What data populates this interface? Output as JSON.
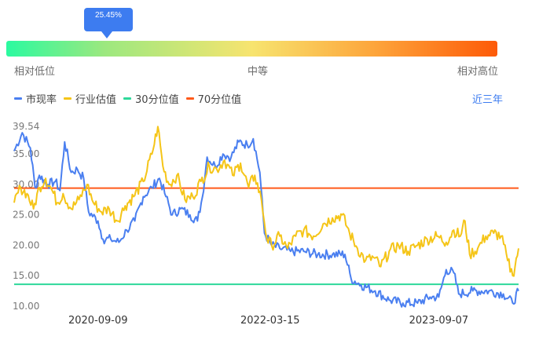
{
  "gauge": {
    "percentile_label": "25.45%",
    "percentile_value": 25.45,
    "low_label": "相对低位",
    "mid_label": "中等",
    "high_label": "相对高位",
    "gradient_colors": [
      "#2bfaa0",
      "#9ce87f",
      "#f7e46f",
      "#fda53b",
      "#fd5a08"
    ]
  },
  "legend": {
    "items": [
      {
        "label": "市现率",
        "color": "#4a7ff0"
      },
      {
        "label": "行业估值",
        "color": "#f5c518"
      },
      {
        "label": "30分位值",
        "color": "#2ed89a"
      },
      {
        "label": "70分位值",
        "color": "#ff5a1a"
      }
    ],
    "period_label": "近三年"
  },
  "chart_data": {
    "type": "line",
    "x_range": [
      "2019-12-15",
      "2024-05-20"
    ],
    "x_ticks": [
      "2020-09-09",
      "2022-03-15",
      "2023-09-07"
    ],
    "y_ticks": [
      "10.00",
      "15.00",
      "20.00",
      "25.00",
      "30.00",
      "35.00",
      "39.54"
    ],
    "ylim": [
      10.0,
      39.54
    ],
    "reference_lines": [
      {
        "name": "30分位值",
        "value": 13.6,
        "color": "#2ed89a"
      },
      {
        "name": "70分位值",
        "value": 29.4,
        "color": "#ff5a1a"
      }
    ],
    "series": [
      {
        "name": "市现率",
        "color": "#4a7ff0",
        "points": [
          [
            "2019-12-15",
            35.5
          ],
          [
            "2020-01-10",
            38.5
          ],
          [
            "2020-02-05",
            36.0
          ],
          [
            "2020-02-20",
            29.5
          ],
          [
            "2020-03-05",
            31.5
          ],
          [
            "2020-04-01",
            30.0
          ],
          [
            "2020-04-25",
            30.5
          ],
          [
            "2020-05-10",
            29.0
          ],
          [
            "2020-05-25",
            37.0
          ],
          [
            "2020-06-15",
            32.0
          ],
          [
            "2020-07-05",
            32.5
          ],
          [
            "2020-07-25",
            31.0
          ],
          [
            "2020-08-10",
            25.5
          ],
          [
            "2020-09-09",
            24.0
          ],
          [
            "2020-09-25",
            21.0
          ],
          [
            "2020-10-20",
            21.0
          ],
          [
            "2020-11-15",
            20.5
          ],
          [
            "2020-12-10",
            22.5
          ],
          [
            "2021-01-05",
            24.0
          ],
          [
            "2021-02-01",
            28.0
          ],
          [
            "2021-03-01",
            29.5
          ],
          [
            "2021-03-25",
            31.0
          ],
          [
            "2021-04-15",
            28.0
          ],
          [
            "2021-05-05",
            25.0
          ],
          [
            "2021-06-01",
            26.0
          ],
          [
            "2021-07-01",
            25.0
          ],
          [
            "2021-07-25",
            24.0
          ],
          [
            "2021-08-10",
            28.0
          ],
          [
            "2021-08-25",
            34.5
          ],
          [
            "2021-09-20",
            33.0
          ],
          [
            "2021-10-15",
            35.0
          ],
          [
            "2021-11-10",
            34.5
          ],
          [
            "2021-12-05",
            37.0
          ],
          [
            "2022-01-01",
            36.5
          ],
          [
            "2022-01-20",
            37.5
          ],
          [
            "2022-02-10",
            32.0
          ],
          [
            "2022-02-25",
            22.0
          ],
          [
            "2022-03-20",
            20.0
          ],
          [
            "2022-04-15",
            19.5
          ],
          [
            "2022-05-20",
            19.0
          ],
          [
            "2022-07-01",
            19.0
          ],
          [
            "2022-08-15",
            18.5
          ],
          [
            "2022-10-01",
            18.5
          ],
          [
            "2022-11-10",
            18.5
          ],
          [
            "2022-11-30",
            14.5
          ],
          [
            "2023-01-01",
            13.5
          ],
          [
            "2023-02-15",
            12.5
          ],
          [
            "2023-04-01",
            11.0
          ],
          [
            "2023-05-15",
            10.5
          ],
          [
            "2023-07-01",
            10.5
          ],
          [
            "2023-08-10",
            11.5
          ],
          [
            "2023-09-07",
            11.5
          ],
          [
            "2023-10-01",
            16.0
          ],
          [
            "2023-10-25",
            15.5
          ],
          [
            "2023-11-10",
            12.0
          ],
          [
            "2023-12-25",
            12.5
          ],
          [
            "2024-02-15",
            12.5
          ],
          [
            "2024-04-01",
            12.0
          ],
          [
            "2024-05-01",
            10.5
          ],
          [
            "2024-05-20",
            12.5
          ]
        ]
      },
      {
        "name": "行业估值",
        "color": "#f5c518",
        "points": [
          [
            "2019-12-15",
            27.0
          ],
          [
            "2020-01-05",
            29.5
          ],
          [
            "2020-01-25",
            28.5
          ],
          [
            "2020-02-15",
            26.0
          ],
          [
            "2020-03-05",
            29.5
          ],
          [
            "2020-03-25",
            31.0
          ],
          [
            "2020-04-15",
            29.0
          ],
          [
            "2020-05-01",
            27.0
          ],
          [
            "2020-05-20",
            28.5
          ],
          [
            "2020-06-15",
            26.0
          ],
          [
            "2020-07-10",
            27.5
          ],
          [
            "2020-08-05",
            30.0
          ],
          [
            "2020-08-25",
            27.0
          ],
          [
            "2020-09-20",
            25.5
          ],
          [
            "2020-10-15",
            26.0
          ],
          [
            "2020-11-10",
            24.0
          ],
          [
            "2020-12-05",
            26.5
          ],
          [
            "2021-01-01",
            28.0
          ],
          [
            "2021-02-01",
            30.5
          ],
          [
            "2021-03-01",
            35.0
          ],
          [
            "2021-03-20",
            39.5
          ],
          [
            "2021-04-05",
            33.0
          ],
          [
            "2021-04-25",
            30.0
          ],
          [
            "2021-05-20",
            31.5
          ],
          [
            "2021-06-15",
            27.5
          ],
          [
            "2021-07-10",
            28.0
          ],
          [
            "2021-08-05",
            30.5
          ],
          [
            "2021-09-01",
            33.0
          ],
          [
            "2021-09-25",
            32.5
          ],
          [
            "2021-10-20",
            34.0
          ],
          [
            "2021-11-15",
            31.5
          ],
          [
            "2021-12-10",
            33.5
          ],
          [
            "2022-01-05",
            29.5
          ],
          [
            "2022-01-25",
            31.5
          ],
          [
            "2022-02-15",
            27.5
          ],
          [
            "2022-03-05",
            21.0
          ],
          [
            "2022-03-20",
            20.0
          ],
          [
            "2022-04-15",
            21.5
          ],
          [
            "2022-05-10",
            19.5
          ],
          [
            "2022-06-05",
            21.5
          ],
          [
            "2022-07-01",
            22.5
          ],
          [
            "2022-08-01",
            21.5
          ],
          [
            "2022-09-01",
            23.5
          ],
          [
            "2022-10-01",
            24.5
          ],
          [
            "2022-11-01",
            25.0
          ],
          [
            "2022-11-25",
            22.0
          ],
          [
            "2022-12-20",
            19.5
          ],
          [
            "2023-01-15",
            17.5
          ],
          [
            "2023-02-10",
            18.0
          ],
          [
            "2023-03-05",
            16.5
          ],
          [
            "2023-04-01",
            19.0
          ],
          [
            "2023-05-01",
            20.0
          ],
          [
            "2023-06-01",
            19.0
          ],
          [
            "2023-07-01",
            20.0
          ],
          [
            "2023-08-01",
            21.0
          ],
          [
            "2023-09-01",
            21.5
          ],
          [
            "2023-10-01",
            20.5
          ],
          [
            "2023-10-25",
            22.5
          ],
          [
            "2023-11-15",
            21.5
          ],
          [
            "2023-11-30",
            24.0
          ],
          [
            "2023-12-15",
            18.5
          ],
          [
            "2024-01-10",
            19.5
          ],
          [
            "2024-02-05",
            21.5
          ],
          [
            "2024-03-01",
            22.0
          ],
          [
            "2024-03-25",
            21.5
          ],
          [
            "2024-04-15",
            17.5
          ],
          [
            "2024-05-01",
            15.0
          ],
          [
            "2024-05-20",
            19.5
          ]
        ]
      }
    ]
  }
}
